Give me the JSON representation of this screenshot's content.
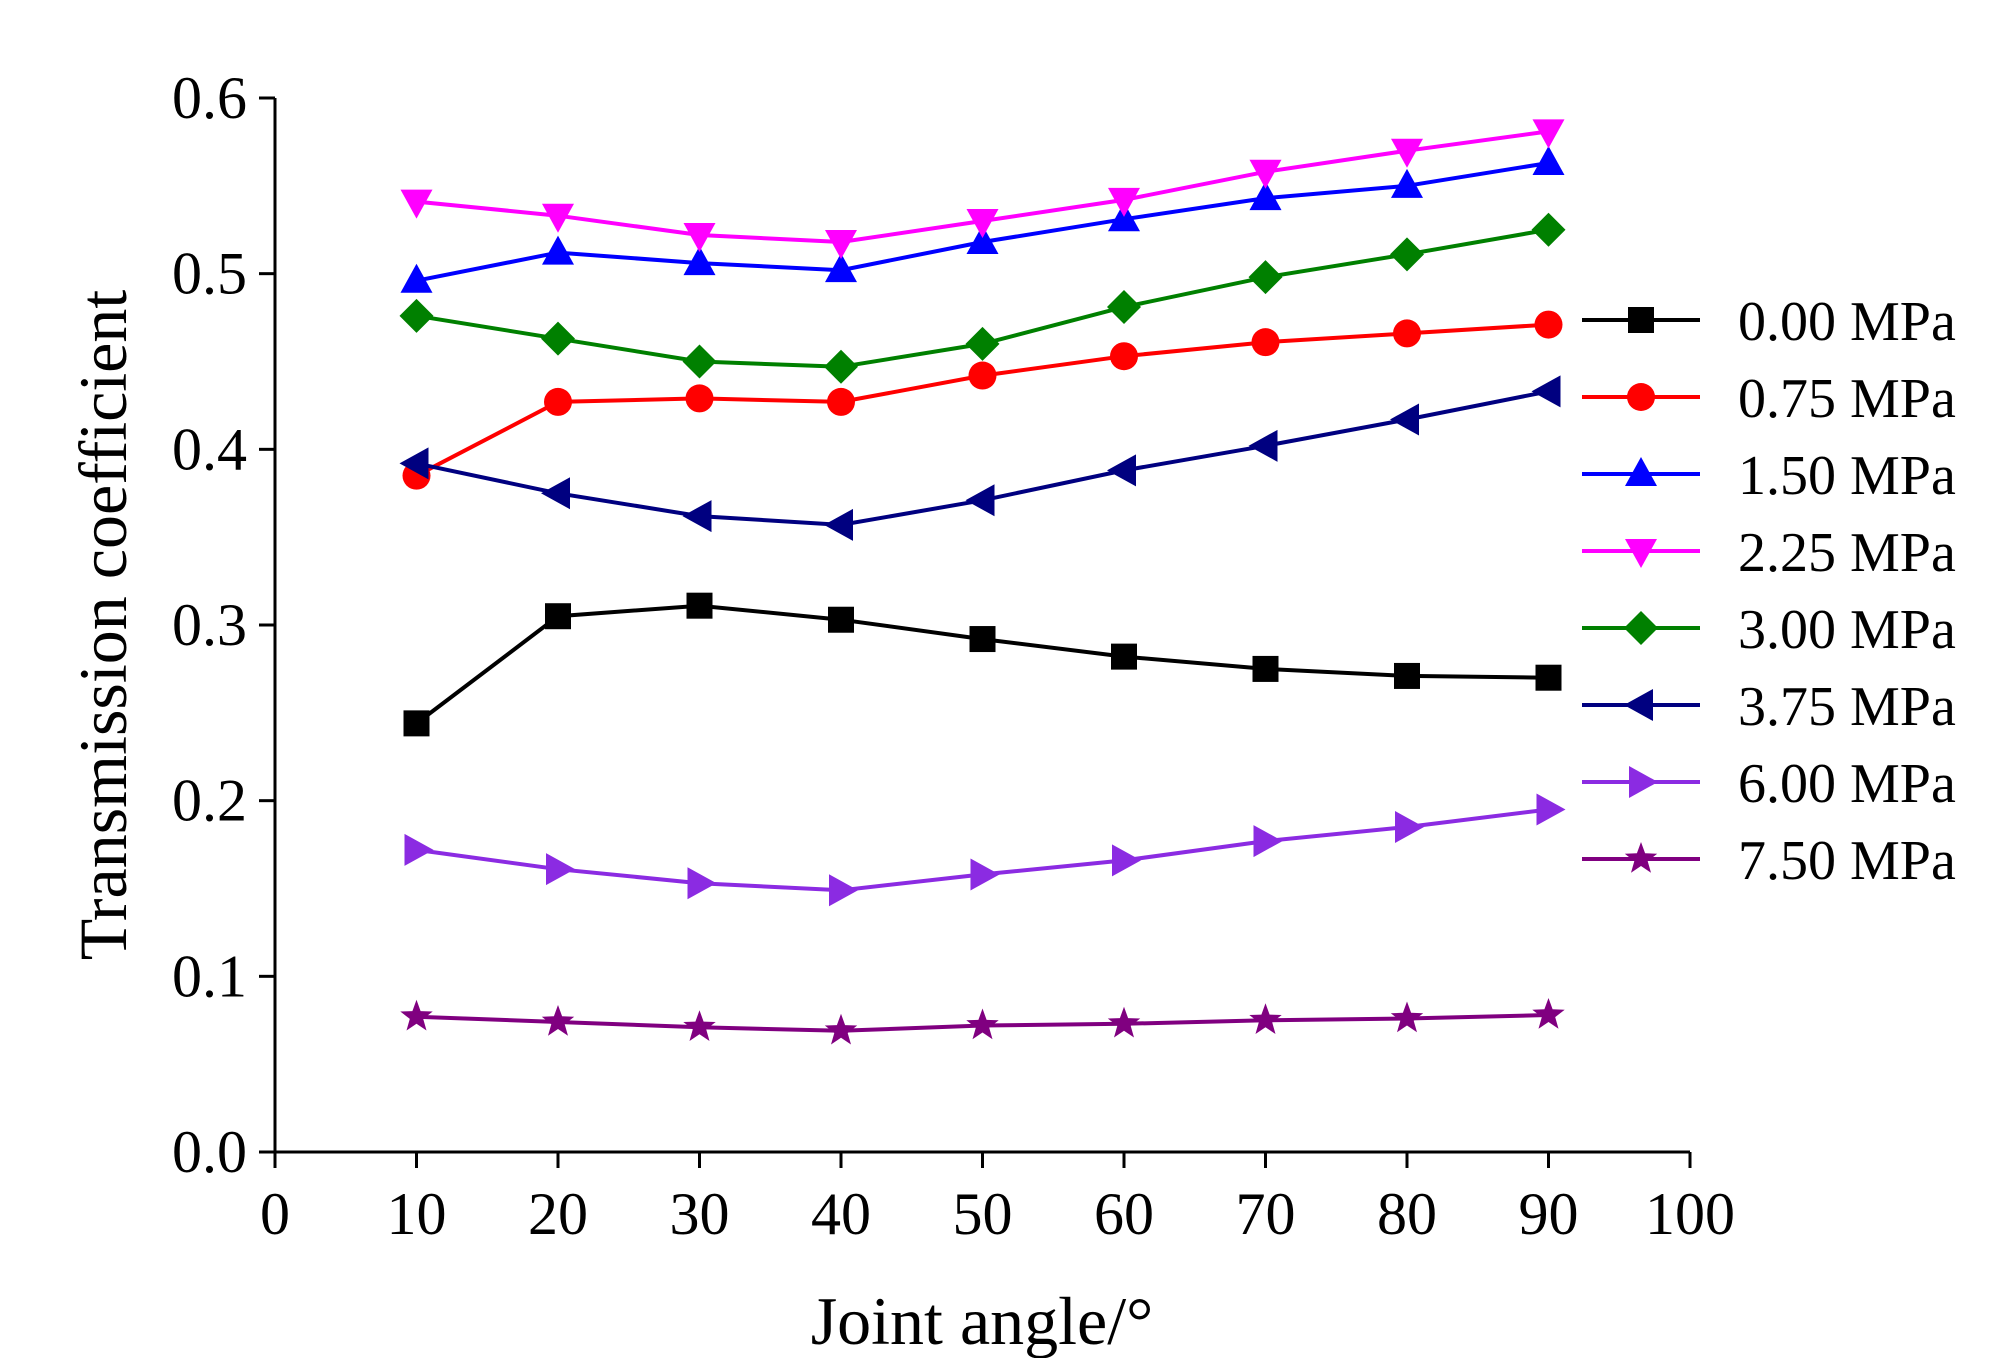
{
  "chart_data": {
    "type": "line",
    "title": "",
    "xlabel": "Joint angle/°",
    "ylabel": "Transmission coefficient",
    "xlim": [
      0,
      100
    ],
    "ylim": [
      0.0,
      0.6
    ],
    "x_ticks": [
      "0",
      "10",
      "20",
      "30",
      "40",
      "50",
      "60",
      "70",
      "80",
      "90",
      "100"
    ],
    "y_ticks": [
      "0.0",
      "0.1",
      "0.2",
      "0.3",
      "0.4",
      "0.5",
      "0.6"
    ],
    "grid": false,
    "legend_position": "right",
    "x": [
      10,
      20,
      30,
      40,
      50,
      60,
      70,
      80,
      90
    ],
    "series": [
      {
        "name": "0.00 MPa",
        "color": "#000000",
        "marker": "square",
        "values": [
          0.244,
          0.305,
          0.311,
          0.303,
          0.292,
          0.282,
          0.275,
          0.271,
          0.27
        ]
      },
      {
        "name": "0.75 MPa",
        "color": "#ff0000",
        "marker": "circle",
        "values": [
          0.385,
          0.427,
          0.429,
          0.427,
          0.442,
          0.453,
          0.461,
          0.466,
          0.471
        ]
      },
      {
        "name": "1.50 MPa",
        "color": "#0000ff",
        "marker": "triangle-up",
        "values": [
          0.496,
          0.512,
          0.506,
          0.502,
          0.518,
          0.531,
          0.543,
          0.55,
          0.563
        ]
      },
      {
        "name": "2.25 MPa",
        "color": "#ff00ff",
        "marker": "triangle-down",
        "values": [
          0.541,
          0.533,
          0.522,
          0.518,
          0.53,
          0.542,
          0.558,
          0.57,
          0.581
        ]
      },
      {
        "name": "3.00 MPa",
        "color": "#008000",
        "marker": "diamond",
        "values": [
          0.476,
          0.463,
          0.45,
          0.447,
          0.46,
          0.481,
          0.498,
          0.511,
          0.525
        ]
      },
      {
        "name": "3.75 MPa",
        "color": "#000080",
        "marker": "triangle-left",
        "values": [
          0.392,
          0.375,
          0.362,
          0.357,
          0.371,
          0.388,
          0.402,
          0.417,
          0.433
        ]
      },
      {
        "name": "6.00 MPa",
        "color": "#8b2be2",
        "marker": "triangle-right",
        "values": [
          0.172,
          0.161,
          0.153,
          0.149,
          0.158,
          0.166,
          0.177,
          0.185,
          0.195
        ]
      },
      {
        "name": "7.50 MPa",
        "color": "#800080",
        "marker": "star",
        "values": [
          0.077,
          0.074,
          0.071,
          0.069,
          0.072,
          0.073,
          0.075,
          0.076,
          0.078
        ]
      }
    ]
  }
}
